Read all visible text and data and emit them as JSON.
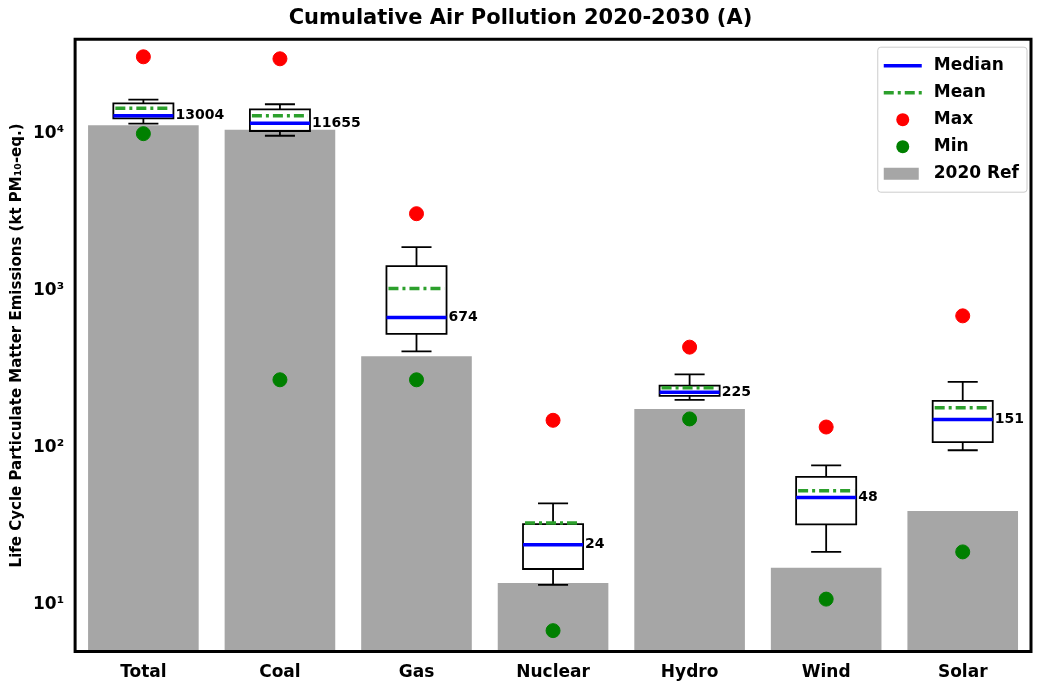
{
  "chart_data": {
    "type": "bar",
    "title": "Cumulative Air Pollution 2020-2030 (A)",
    "ylabel": "Life Cycle Particulate Matter Emissions (kt PM₁₀-eq.)",
    "categories": [
      "Total",
      "Coal",
      "Gas",
      "Nuclear",
      "Hydro",
      "Wind",
      "Solar"
    ],
    "log": "y",
    "ylim": [
      5,
      40000
    ],
    "yticks": [
      {
        "value": 10,
        "label": "10¹"
      },
      {
        "value": 100,
        "label": "10²"
      },
      {
        "value": 1000,
        "label": "10³"
      },
      {
        "value": 10000,
        "label": "10⁴"
      }
    ],
    "legend": "top right",
    "series": [
      {
        "name": "Median",
        "type": "line",
        "line_style": "solid",
        "color": "#0000ff",
        "values": [
          null,
          null,
          null,
          null,
          null,
          null,
          null
        ]
      },
      {
        "type": "box",
        "color": "#000000",
        "boxes": [
          {
            "low": 11600,
            "q1": 12500,
            "median": 13004,
            "q3": 15600,
            "high": 16500,
            "mean": 14500
          },
          {
            "low": 9700,
            "q1": 10400,
            "median": 11655,
            "q3": 14300,
            "high": 15400,
            "mean": 13000
          },
          {
            "low": 410,
            "q1": 530,
            "median": 674,
            "q3": 1430,
            "high": 1890,
            "mean": 1030
          },
          {
            "low": 13.3,
            "q1": 16.8,
            "median": 24,
            "q3": 32.5,
            "high": 44,
            "mean": 33
          },
          {
            "low": 201,
            "q1": 213,
            "median": 225,
            "q3": 248,
            "high": 292,
            "mean": 240
          },
          {
            "low": 21.6,
            "q1": 32.3,
            "median": 48,
            "q3": 65,
            "high": 77,
            "mean": 53
          },
          {
            "low": 96,
            "q1": 108,
            "median": 151,
            "q3": 198,
            "high": 262,
            "mean": 179
          }
        ],
        "value_labels": [
          "13004",
          "11655",
          "674",
          "24",
          "225",
          "48",
          "151"
        ]
      },
      {
        "name": "Mean",
        "type": "line",
        "line_style": "dashed",
        "color": "#2ca02c",
        "values": [
          null,
          null,
          null,
          null,
          null,
          null,
          null
        ]
      },
      {
        "name": "Max",
        "type": "scatter",
        "marker": "circle",
        "color": "#ff0000",
        "x": [
          "Total",
          "Coal",
          "Gas",
          "Nuclear",
          "Hydro",
          "Wind",
          "Solar"
        ],
        "values": [
          30900,
          30000,
          3090,
          149,
          436,
          135,
          690
        ]
      },
      {
        "name": "Min",
        "type": "scatter",
        "marker": "circle",
        "color": "#008000",
        "x": [
          "Total",
          "Coal",
          "Gas",
          "Nuclear",
          "Hydro",
          "Wind",
          "Solar"
        ],
        "values": [
          10000,
          270,
          270,
          6.8,
          152,
          10.8,
          21.6
        ]
      },
      {
        "name": "2020 Ref",
        "color": "#a6a6a6",
        "values": [
          11300,
          10600,
          381,
          13.7,
          176,
          17.1,
          39.3
        ]
      }
    ]
  }
}
